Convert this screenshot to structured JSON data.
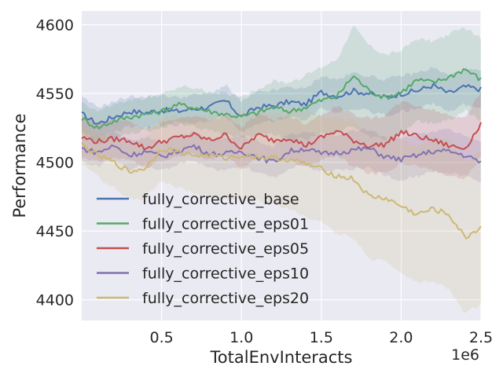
{
  "chart_data": {
    "type": "line",
    "title": "",
    "xlabel": "TotalEnvInteracts",
    "ylabel": "Performance",
    "x_offset_label": "1e6",
    "xlim": [
      0,
      2.5
    ],
    "ylim": [
      4385,
      4610
    ],
    "x_scale": 1000000,
    "xticks": [
      0.5,
      1.0,
      1.5,
      2.0,
      2.5
    ],
    "xtick_labels": [
      "0.5",
      "1.0",
      "1.5",
      "2.0",
      "2.5"
    ],
    "yticks": [
      4400,
      4450,
      4500,
      4550,
      4600
    ],
    "ytick_labels": [
      "4400",
      "4450",
      "4500",
      "4550",
      "4600"
    ],
    "grid": true,
    "legend_position": "lower-left",
    "x": [
      0.0,
      0.1,
      0.2,
      0.3,
      0.4,
      0.5,
      0.6,
      0.7,
      0.8,
      0.9,
      1.0,
      1.1,
      1.2,
      1.3,
      1.4,
      1.5,
      1.6,
      1.7,
      1.8,
      1.9,
      2.0,
      2.1,
      2.2,
      2.3,
      2.4,
      2.5
    ],
    "series": [
      {
        "name": "fully_corrective_base",
        "color": "#4c72b0",
        "values": [
          4535,
          4528,
          4533,
          4537,
          4536,
          4538,
          4537,
          4539,
          4540,
          4545,
          4533,
          4540,
          4541,
          4544,
          4542,
          4551,
          4548,
          4552,
          4550,
          4547,
          4550,
          4552,
          4556,
          4550,
          4555,
          4553
        ],
        "band": [
          12,
          12,
          11,
          11,
          11,
          11,
          10,
          10,
          10,
          11,
          11,
          11,
          11,
          11,
          11,
          12,
          12,
          13,
          13,
          13,
          13,
          13,
          13,
          13,
          13,
          13
        ]
      },
      {
        "name": "fully_corrective_eps01",
        "color": "#55a868",
        "values": [
          4532,
          4525,
          4530,
          4533,
          4535,
          4537,
          4542,
          4540,
          4537,
          4535,
          4533,
          4536,
          4540,
          4537,
          4540,
          4545,
          4548,
          4563,
          4552,
          4547,
          4551,
          4560,
          4558,
          4562,
          4568,
          4560
        ],
        "band": [
          12,
          12,
          12,
          12,
          12,
          12,
          13,
          14,
          14,
          15,
          15,
          17,
          19,
          21,
          23,
          24,
          27,
          36,
          33,
          31,
          30,
          30,
          30,
          31,
          30,
          30
        ]
      },
      {
        "name": "fully_corrective_eps05",
        "color": "#c44e52",
        "values": [
          4518,
          4515,
          4517,
          4516,
          4510,
          4515,
          4518,
          4520,
          4516,
          4520,
          4510,
          4520,
          4516,
          4518,
          4512,
          4518,
          4523,
          4516,
          4512,
          4513,
          4522,
          4519,
          4516,
          4512,
          4510,
          4528
        ],
        "band": [
          14,
          14,
          14,
          14,
          14,
          14,
          14,
          14,
          14,
          15,
          15,
          15,
          15,
          16,
          16,
          17,
          18,
          19,
          20,
          21,
          22,
          22,
          22,
          22,
          23,
          23
        ]
      },
      {
        "name": "fully_corrective_eps10",
        "color": "#8172b2",
        "values": [
          4510,
          4507,
          4512,
          4505,
          4508,
          4504,
          4508,
          4512,
          4506,
          4506,
          4508,
          4504,
          4500,
          4508,
          4510,
          4506,
          4507,
          4509,
          4510,
          4504,
          4502,
          4505,
          4508,
          4508,
          4505,
          4500
        ],
        "band": [
          9,
          10,
          10,
          10,
          10,
          10,
          10,
          10,
          11,
          11,
          11,
          11,
          12,
          12,
          12,
          13,
          13,
          14,
          14,
          14,
          15,
          15,
          15,
          15,
          15,
          15
        ]
      },
      {
        "name": "fully_corrective_eps20",
        "color": "#ccb974",
        "values": [
          4513,
          4505,
          4500,
          4493,
          4496,
          4510,
          4508,
          4505,
          4505,
          4503,
          4505,
          4504,
          4503,
          4502,
          4499,
          4495,
          4490,
          4488,
          4475,
          4474,
          4468,
          4462,
          4466,
          4462,
          4445,
          4453
        ],
        "band": [
          14,
          16,
          18,
          20,
          22,
          24,
          26,
          27,
          29,
          30,
          31,
          32,
          34,
          36,
          38,
          39,
          41,
          43,
          45,
          46,
          48,
          50,
          52,
          54,
          55,
          56
        ]
      }
    ]
  }
}
